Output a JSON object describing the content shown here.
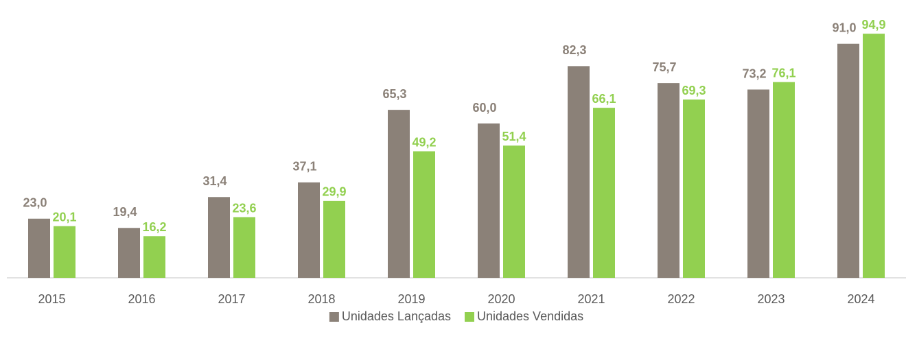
{
  "chart_data": {
    "type": "bar",
    "categories": [
      "2015",
      "2016",
      "2017",
      "2018",
      "2019",
      "2020",
      "2021",
      "2022",
      "2023",
      "2024"
    ],
    "series": [
      {
        "name": "Unidades Lançadas",
        "color": "#8b8178",
        "values": [
          23.0,
          19.4,
          31.4,
          37.1,
          65.3,
          60.0,
          82.3,
          75.7,
          73.2,
          91.0
        ],
        "value_labels": [
          "23,0",
          "19,4",
          "31,4",
          "37,1",
          "65,3",
          "60,0",
          "82,3",
          "75,7",
          "73,2",
          "91,0"
        ]
      },
      {
        "name": "Unidades Vendidas",
        "color": "#92d050",
        "values": [
          20.1,
          16.2,
          23.6,
          29.9,
          49.2,
          51.4,
          66.1,
          69.3,
          76.1,
          94.9
        ],
        "value_labels": [
          "20,1",
          "16,2",
          "23,6",
          "29,9",
          "49,2",
          "51,4",
          "66,1",
          "69,3",
          "76,1",
          "94,9"
        ]
      }
    ],
    "ylim": [
      0,
      100
    ],
    "legend": "bottom"
  }
}
